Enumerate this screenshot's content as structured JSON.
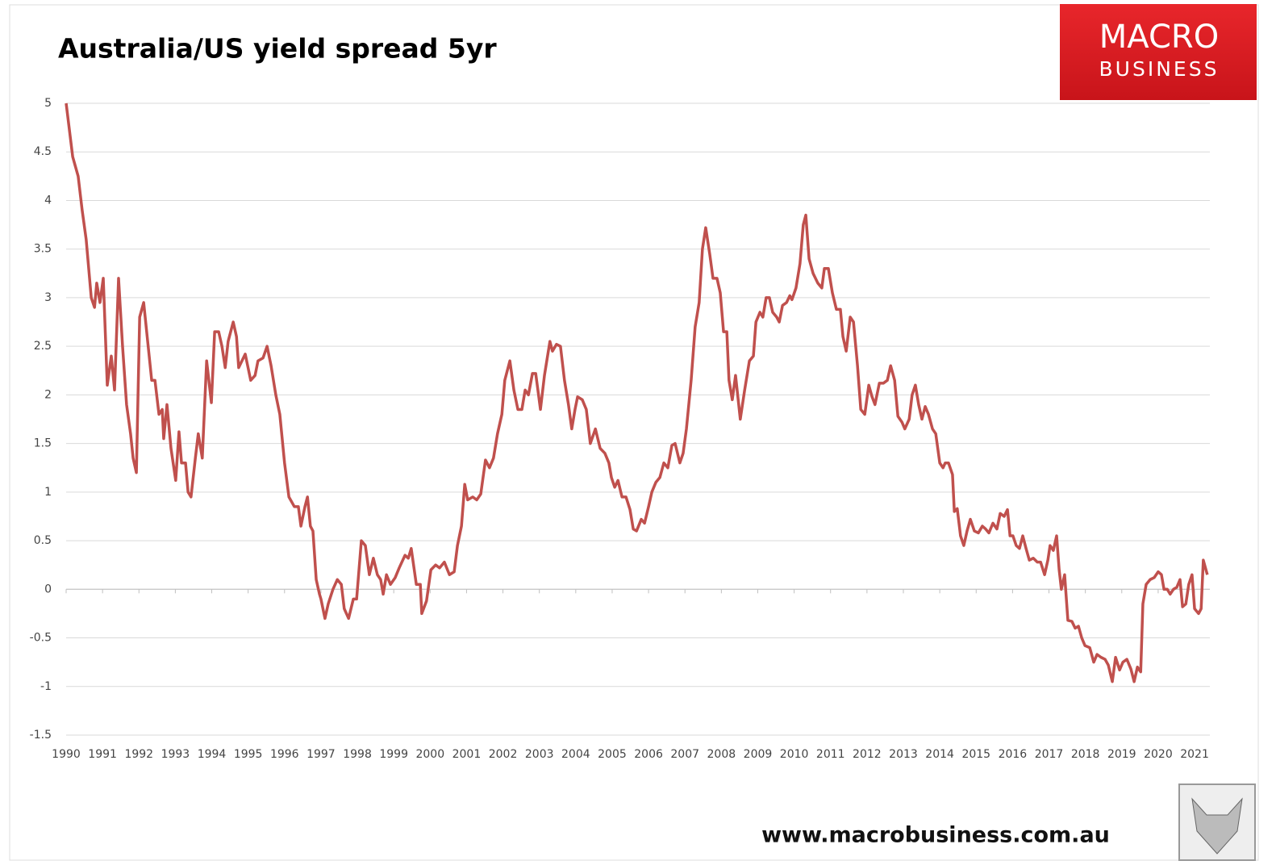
{
  "chart_data": {
    "type": "line",
    "title": "Australia/US yield spread 5yr",
    "color": "#c0504d",
    "xlim": [
      1990,
      2021.42
    ],
    "ylim": [
      -1.5,
      5
    ],
    "xticks": [
      1990,
      1991,
      1992,
      1993,
      1994,
      1995,
      1996,
      1997,
      1998,
      1999,
      2000,
      2001,
      2002,
      2003,
      2004,
      2005,
      2006,
      2007,
      2008,
      2009,
      2010,
      2011,
      2012,
      2013,
      2014,
      2015,
      2016,
      2017,
      2018,
      2019,
      2020,
      2021
    ],
    "yticks": [
      5,
      4.5,
      4,
      3.5,
      3,
      2.5,
      2,
      1.5,
      1,
      0.5,
      0,
      -0.5,
      -1,
      -1.5
    ],
    "grid": true,
    "x": [
      1990.0,
      1990.18,
      1990.33,
      1990.44,
      1990.55,
      1990.69,
      1990.78,
      1990.84,
      1990.93,
      1991.02,
      1991.13,
      1991.24,
      1991.33,
      1991.44,
      1991.55,
      1991.66,
      1991.77,
      1991.84,
      1991.93,
      1992.02,
      1992.13,
      1992.24,
      1992.35,
      1992.44,
      1992.55,
      1992.64,
      1992.68,
      1992.77,
      1992.88,
      1993.01,
      1993.1,
      1993.17,
      1993.28,
      1993.35,
      1993.43,
      1993.55,
      1993.63,
      1993.74,
      1993.86,
      1993.99,
      1994.08,
      1994.19,
      1994.28,
      1994.37,
      1994.45,
      1994.59,
      1994.68,
      1994.74,
      1994.92,
      1995.07,
      1995.19,
      1995.27,
      1995.41,
      1995.52,
      1995.63,
      1995.76,
      1995.87,
      1996.0,
      1996.12,
      1996.27,
      1996.38,
      1996.45,
      1996.56,
      1996.63,
      1996.71,
      1996.78,
      1996.87,
      1996.96,
      1997.0,
      1997.11,
      1997.2,
      1997.33,
      1997.45,
      1997.56,
      1997.64,
      1997.76,
      1997.89,
      1997.98,
      1998.11,
      1998.22,
      1998.33,
      1998.44,
      1998.55,
      1998.64,
      1998.71,
      1998.8,
      1998.91,
      1999.04,
      1999.15,
      1999.31,
      1999.4,
      1999.48,
      1999.62,
      1999.73,
      1999.77,
      1999.9,
      2000.02,
      2000.15,
      2000.26,
      2000.39,
      2000.53,
      2000.66,
      2000.75,
      2000.86,
      2000.95,
      2001.03,
      2001.17,
      2001.28,
      2001.39,
      2001.52,
      2001.63,
      2001.74,
      2001.85,
      2001.97,
      2002.05,
      2002.19,
      2002.3,
      2002.41,
      2002.52,
      2002.61,
      2002.7,
      2002.81,
      2002.9,
      2002.96,
      2003.03,
      2003.14,
      2003.29,
      2003.36,
      2003.47,
      2003.58,
      2003.69,
      2003.8,
      2003.89,
      2003.98,
      2004.05,
      2004.18,
      2004.29,
      2004.4,
      2004.54,
      2004.67,
      2004.8,
      2004.91,
      2004.98,
      2005.07,
      2005.16,
      2005.27,
      2005.38,
      2005.49,
      2005.58,
      2005.67,
      2005.8,
      2005.89,
      2006.0,
      2006.09,
      2006.2,
      2006.31,
      2006.42,
      2006.53,
      2006.64,
      2006.73,
      2006.86,
      2006.95,
      2007.04,
      2007.17,
      2007.28,
      2007.39,
      2007.48,
      2007.57,
      2007.68,
      2007.77,
      2007.88,
      2007.97,
      2008.06,
      2008.15,
      2008.21,
      2008.3,
      2008.39,
      2008.52,
      2008.64,
      2008.77,
      2008.88,
      2008.95,
      2009.06,
      2009.14,
      2009.23,
      2009.32,
      2009.41,
      2009.52,
      2009.59,
      2009.68,
      2009.79,
      2009.88,
      2009.94,
      2010.05,
      2010.16,
      2010.25,
      2010.32,
      2010.41,
      2010.52,
      2010.65,
      2010.76,
      2010.83,
      2010.94,
      2011.05,
      2011.16,
      2011.27,
      2011.34,
      2011.43,
      2011.54,
      2011.63,
      2011.74,
      2011.83,
      2011.94,
      2012.05,
      2012.14,
      2012.22,
      2012.34,
      2012.45,
      2012.56,
      2012.65,
      2012.76,
      2012.85,
      2012.96,
      2013.04,
      2013.16,
      2013.24,
      2013.33,
      2013.42,
      2013.51,
      2013.6,
      2013.69,
      2013.8,
      2013.89,
      2014.0,
      2014.09,
      2014.15,
      2014.24,
      2014.35,
      2014.4,
      2014.48,
      2014.57,
      2014.66,
      2014.75,
      2014.84,
      2014.95,
      2015.06,
      2015.17,
      2015.26,
      2015.35,
      2015.46,
      2015.57,
      2015.66,
      2015.77,
      2015.86,
      2015.93,
      2016.01,
      2016.1,
      2016.19,
      2016.28,
      2016.37,
      2016.46,
      2016.57,
      2016.68,
      2016.77,
      2016.88,
      2016.97,
      2017.03,
      2017.12,
      2017.21,
      2017.28,
      2017.34,
      2017.43,
      2017.52,
      2017.63,
      2017.72,
      2017.81,
      2017.9,
      2017.99,
      2018.12,
      2018.23,
      2018.32,
      2018.43,
      2018.54,
      2018.63,
      2018.74,
      2018.83,
      2018.94,
      2019.03,
      2019.14,
      2019.25,
      2019.34,
      2019.43,
      2019.52,
      2019.58,
      2019.67,
      2019.78,
      2019.89,
      2020.0,
      2020.09,
      2020.16,
      2020.25,
      2020.33,
      2020.42,
      2020.51,
      2020.6,
      2020.67,
      2020.76,
      2020.84,
      2020.93,
      2021.0,
      2021.11,
      2021.18,
      2021.24,
      2021.35
    ],
    "values": [
      5.0,
      4.45,
      4.25,
      3.9,
      3.6,
      3.0,
      2.9,
      3.15,
      2.95,
      3.2,
      2.1,
      2.4,
      2.05,
      3.2,
      2.5,
      1.9,
      1.6,
      1.35,
      1.2,
      2.8,
      2.95,
      2.55,
      2.15,
      2.15,
      1.8,
      1.85,
      1.55,
      1.9,
      1.45,
      1.12,
      1.62,
      1.3,
      1.3,
      1.0,
      0.95,
      1.35,
      1.6,
      1.35,
      2.35,
      1.92,
      2.65,
      2.65,
      2.5,
      2.28,
      2.55,
      2.75,
      2.6,
      2.28,
      2.42,
      2.15,
      2.2,
      2.35,
      2.38,
      2.5,
      2.3,
      2.0,
      1.8,
      1.3,
      0.95,
      0.85,
      0.85,
      0.65,
      0.85,
      0.95,
      0.65,
      0.6,
      0.1,
      -0.05,
      -0.1,
      -0.3,
      -0.15,
      0.0,
      0.1,
      0.05,
      -0.2,
      -0.3,
      -0.1,
      -0.1,
      0.5,
      0.45,
      0.15,
      0.32,
      0.15,
      0.1,
      -0.05,
      0.15,
      0.05,
      0.12,
      0.22,
      0.35,
      0.32,
      0.42,
      0.05,
      0.05,
      -0.25,
      -0.12,
      0.2,
      0.25,
      0.22,
      0.28,
      0.15,
      0.18,
      0.45,
      0.65,
      1.08,
      0.92,
      0.95,
      0.92,
      0.98,
      1.33,
      1.25,
      1.35,
      1.6,
      1.8,
      2.15,
      2.35,
      2.05,
      1.85,
      1.85,
      2.05,
      2.0,
      2.22,
      2.22,
      2.05,
      1.85,
      2.2,
      2.55,
      2.45,
      2.52,
      2.5,
      2.15,
      1.9,
      1.65,
      1.85,
      1.98,
      1.95,
      1.85,
      1.5,
      1.65,
      1.45,
      1.4,
      1.3,
      1.15,
      1.05,
      1.12,
      0.95,
      0.95,
      0.82,
      0.62,
      0.6,
      0.72,
      0.68,
      0.85,
      1.0,
      1.1,
      1.15,
      1.3,
      1.25,
      1.48,
      1.5,
      1.3,
      1.4,
      1.65,
      2.15,
      2.7,
      2.95,
      3.5,
      3.72,
      3.45,
      3.2,
      3.2,
      3.05,
      2.65,
      2.65,
      2.15,
      1.95,
      2.2,
      1.75,
      2.05,
      2.35,
      2.4,
      2.75,
      2.85,
      2.8,
      3.0,
      3.0,
      2.85,
      2.8,
      2.75,
      2.92,
      2.95,
      3.02,
      2.98,
      3.1,
      3.35,
      3.75,
      3.85,
      3.4,
      3.25,
      3.15,
      3.1,
      3.3,
      3.3,
      3.05,
      2.88,
      2.88,
      2.6,
      2.45,
      2.8,
      2.75,
      2.3,
      1.85,
      1.8,
      2.1,
      1.98,
      1.9,
      2.12,
      2.12,
      2.15,
      2.3,
      2.15,
      1.78,
      1.72,
      1.65,
      1.75,
      2.0,
      2.1,
      1.9,
      1.75,
      1.88,
      1.8,
      1.65,
      1.6,
      1.3,
      1.25,
      1.3,
      1.3,
      1.18,
      0.8,
      0.83,
      0.55,
      0.45,
      0.6,
      0.72,
      0.6,
      0.58,
      0.65,
      0.62,
      0.58,
      0.68,
      0.62,
      0.78,
      0.75,
      0.82,
      0.55,
      0.55,
      0.45,
      0.42,
      0.55,
      0.42,
      0.3,
      0.32,
      0.28,
      0.28,
      0.15,
      0.3,
      0.45,
      0.4,
      0.55,
      0.2,
      0.0,
      0.15,
      -0.32,
      -0.33,
      -0.4,
      -0.38,
      -0.5,
      -0.58,
      -0.6,
      -0.75,
      -0.67,
      -0.7,
      -0.72,
      -0.78,
      -0.95,
      -0.7,
      -0.83,
      -0.75,
      -0.72,
      -0.82,
      -0.95,
      -0.8,
      -0.85,
      -0.15,
      0.05,
      0.1,
      0.12,
      0.18,
      0.15,
      0.0,
      0.0,
      -0.05,
      0.0,
      0.02,
      0.1,
      -0.18,
      -0.15,
      0.05,
      0.15,
      -0.2,
      -0.25,
      -0.2,
      0.3,
      0.15
    ]
  },
  "logo": {
    "line1": "MACRO",
    "line2": "BUSINESS"
  },
  "footer_url": "www.macrobusiness.com.au"
}
